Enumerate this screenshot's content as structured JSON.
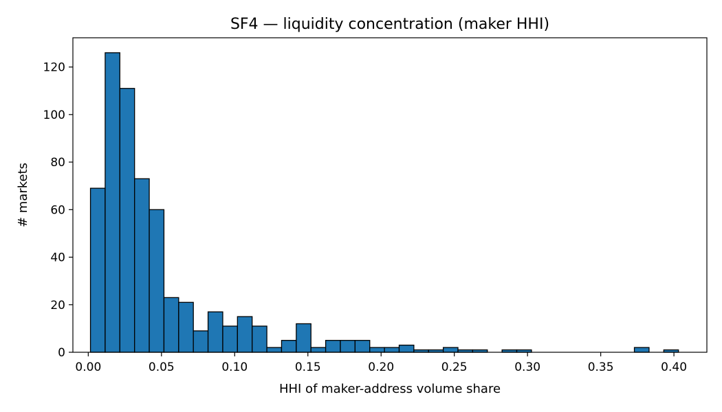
{
  "chart_data": {
    "type": "bar",
    "title": "SF4 — liquidity concentration (maker HHI)",
    "xlabel": "HHI of maker-address volume share",
    "ylabel": "# markets",
    "xlim": [
      -0.0105,
      0.4225
    ],
    "ylim": [
      0,
      132.3
    ],
    "xticks": [
      0.0,
      0.05,
      0.1,
      0.15,
      0.2,
      0.25,
      0.3,
      0.35,
      0.4
    ],
    "xtick_labels": [
      "0.00",
      "0.05",
      "0.10",
      "0.15",
      "0.20",
      "0.25",
      "0.30",
      "0.35",
      "0.40"
    ],
    "yticks": [
      0,
      20,
      40,
      60,
      80,
      100,
      120
    ],
    "ytick_labels": [
      "0",
      "20",
      "40",
      "60",
      "80",
      "100",
      "120"
    ],
    "grid": false,
    "bin_start": 0.0015,
    "bin_width": 0.01004,
    "values": [
      69,
      126,
      111,
      73,
      60,
      23,
      21,
      9,
      17,
      11,
      15,
      11,
      2,
      5,
      12,
      2,
      5,
      5,
      5,
      2,
      2,
      3,
      1,
      1,
      2,
      1,
      1,
      0,
      1,
      1,
      0,
      0,
      0,
      0,
      0,
      0,
      0,
      2,
      0,
      1
    ]
  }
}
